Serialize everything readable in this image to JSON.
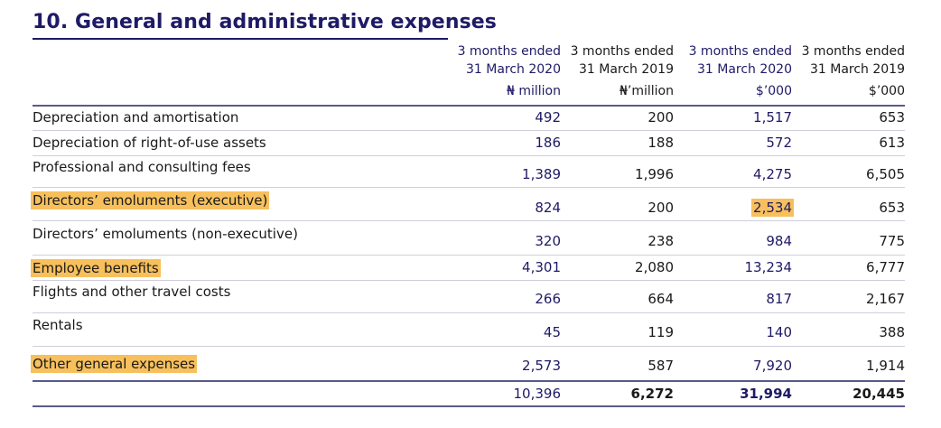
{
  "title": "10. General and administrative expenses",
  "columns": [
    {
      "line1": "3 months ended",
      "line2": "31 March 2020",
      "unit": "₦ million"
    },
    {
      "line1": "3 months ended",
      "line2": "31 March 2019",
      "unit": "₦’million"
    },
    {
      "line1": "3 months ended",
      "line2": "31 March 2020",
      "unit": "$’000"
    },
    {
      "line1": "3 months ended",
      "line2": "31 March 2019",
      "unit": "$’000"
    }
  ],
  "rows": [
    {
      "label": "Depreciation and amortisation",
      "values": [
        "492",
        "200",
        "1,517",
        "653"
      ]
    },
    {
      "label": "Depreciation of right-of-use assets",
      "values": [
        "186",
        "188",
        "572",
        "613"
      ]
    },
    {
      "label": "Professional and consulting fees",
      "values": [
        "1,389",
        "1,996",
        "4,275",
        "6,505"
      ]
    },
    {
      "label": "Directors’ emoluments (executive)",
      "values": [
        "824",
        "200",
        "2,534",
        "653"
      ],
      "highlight_label": true,
      "highlight_value_index": 2
    },
    {
      "label": "Directors’ emoluments (non-executive)",
      "values": [
        "320",
        "238",
        "984",
        "775"
      ]
    },
    {
      "label": "Employee benefits",
      "values": [
        "4,301",
        "2,080",
        "13,234",
        "6,777"
      ],
      "highlight_label": true
    },
    {
      "label": "Flights and other travel costs",
      "values": [
        "266",
        "664",
        "817",
        "2,167"
      ]
    },
    {
      "label": "Rentals",
      "values": [
        "45",
        "119",
        "140",
        "388"
      ]
    },
    {
      "label": "Other general expenses",
      "values": [
        "2,573",
        "587",
        "7,920",
        "1,914"
      ],
      "highlight_label": true
    }
  ],
  "totals": [
    "10,396",
    "6,272",
    "31,994",
    "20,445"
  ],
  "colors": {
    "navy": "#1f1a66",
    "highlight": "#f7c05c"
  }
}
